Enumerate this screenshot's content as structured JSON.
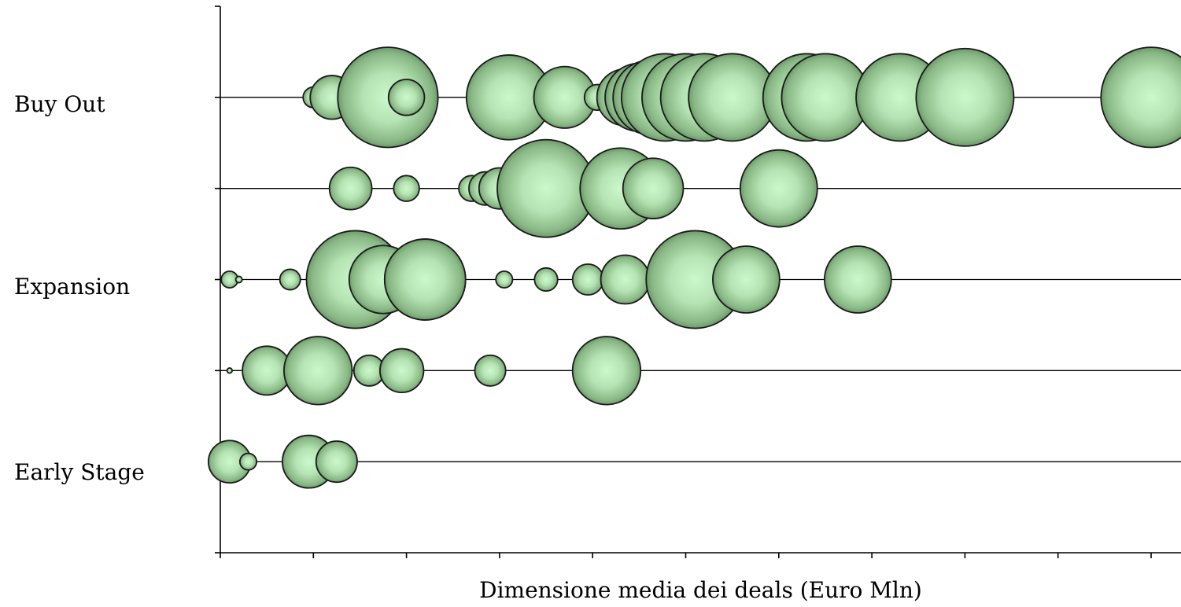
{
  "chart_data": {
    "type": "bubble",
    "title": "",
    "xlabel": "Dimensione media dei deals (Euro Mln)",
    "ylabel": "",
    "xlim": [
      0,
      10.4
    ],
    "x_ticks": [
      0,
      1,
      2,
      3,
      4,
      5,
      6,
      7,
      8,
      9,
      10
    ],
    "x_tick_labels_shown": false,
    "ylim": [
      0,
      6
    ],
    "y_ticks": [
      0,
      1,
      2,
      3,
      4,
      5,
      6
    ],
    "y_category_labels": [
      {
        "y": 5,
        "label": "Buy Out"
      },
      {
        "y": 3,
        "label": "Expansion"
      },
      {
        "y": 1,
        "label": "Early Stage"
      }
    ],
    "bubble_fill": "#c8f5c8",
    "bubble_edge": "#4e7a4e",
    "series": [
      {
        "y": 5,
        "points": [
          {
            "x": 1.0,
            "size": 0.16
          },
          {
            "x": 1.2,
            "size": 0.34
          },
          {
            "x": 1.8,
            "size": 0.78
          },
          {
            "x": 2.0,
            "size": 0.28
          },
          {
            "x": 3.1,
            "size": 0.66
          },
          {
            "x": 3.7,
            "size": 0.48
          },
          {
            "x": 4.05,
            "size": 0.2
          },
          {
            "x": 4.35,
            "size": 0.44
          },
          {
            "x": 4.5,
            "size": 0.53
          },
          {
            "x": 4.62,
            "size": 0.58
          },
          {
            "x": 4.78,
            "size": 0.68
          },
          {
            "x": 5.0,
            "size": 0.68
          },
          {
            "x": 5.2,
            "size": 0.68
          },
          {
            "x": 5.5,
            "size": 0.68
          },
          {
            "x": 6.3,
            "size": 0.68
          },
          {
            "x": 6.5,
            "size": 0.68
          },
          {
            "x": 7.3,
            "size": 0.68
          },
          {
            "x": 8.0,
            "size": 0.76
          },
          {
            "x": 10.0,
            "size": 0.78
          }
        ]
      },
      {
        "y": 4,
        "points": [
          {
            "x": 1.4,
            "size": 0.33
          },
          {
            "x": 2.0,
            "size": 0.2
          },
          {
            "x": 2.7,
            "size": 0.2
          },
          {
            "x": 2.85,
            "size": 0.26
          },
          {
            "x": 3.0,
            "size": 0.32
          },
          {
            "x": 3.5,
            "size": 0.76
          },
          {
            "x": 4.3,
            "size": 0.63
          },
          {
            "x": 4.65,
            "size": 0.47
          },
          {
            "x": 6.0,
            "size": 0.6
          }
        ]
      },
      {
        "y": 3,
        "points": [
          {
            "x": 0.1,
            "size": 0.13
          },
          {
            "x": 0.2,
            "size": 0.05
          },
          {
            "x": 0.75,
            "size": 0.16
          },
          {
            "x": 1.45,
            "size": 0.76
          },
          {
            "x": 1.75,
            "size": 0.53
          },
          {
            "x": 2.2,
            "size": 0.63
          },
          {
            "x": 2.2,
            "size": 0.63
          },
          {
            "x": 3.05,
            "size": 0.13
          },
          {
            "x": 3.5,
            "size": 0.18
          },
          {
            "x": 3.95,
            "size": 0.24
          },
          {
            "x": 4.35,
            "size": 0.38
          },
          {
            "x": 5.1,
            "size": 0.76
          },
          {
            "x": 5.65,
            "size": 0.52
          },
          {
            "x": 6.85,
            "size": 0.52
          }
        ]
      },
      {
        "y": 2,
        "points": [
          {
            "x": 0.1,
            "size": 0.04
          },
          {
            "x": 0.5,
            "size": 0.38
          },
          {
            "x": 1.05,
            "size": 0.53
          },
          {
            "x": 1.6,
            "size": 0.24
          },
          {
            "x": 1.95,
            "size": 0.34
          },
          {
            "x": 2.9,
            "size": 0.24
          },
          {
            "x": 4.15,
            "size": 0.53
          }
        ]
      },
      {
        "y": 1,
        "points": [
          {
            "x": 0.1,
            "size": 0.33
          },
          {
            "x": 0.3,
            "size": 0.13
          },
          {
            "x": 0.95,
            "size": 0.41
          },
          {
            "x": 1.25,
            "size": 0.32
          }
        ]
      }
    ]
  }
}
